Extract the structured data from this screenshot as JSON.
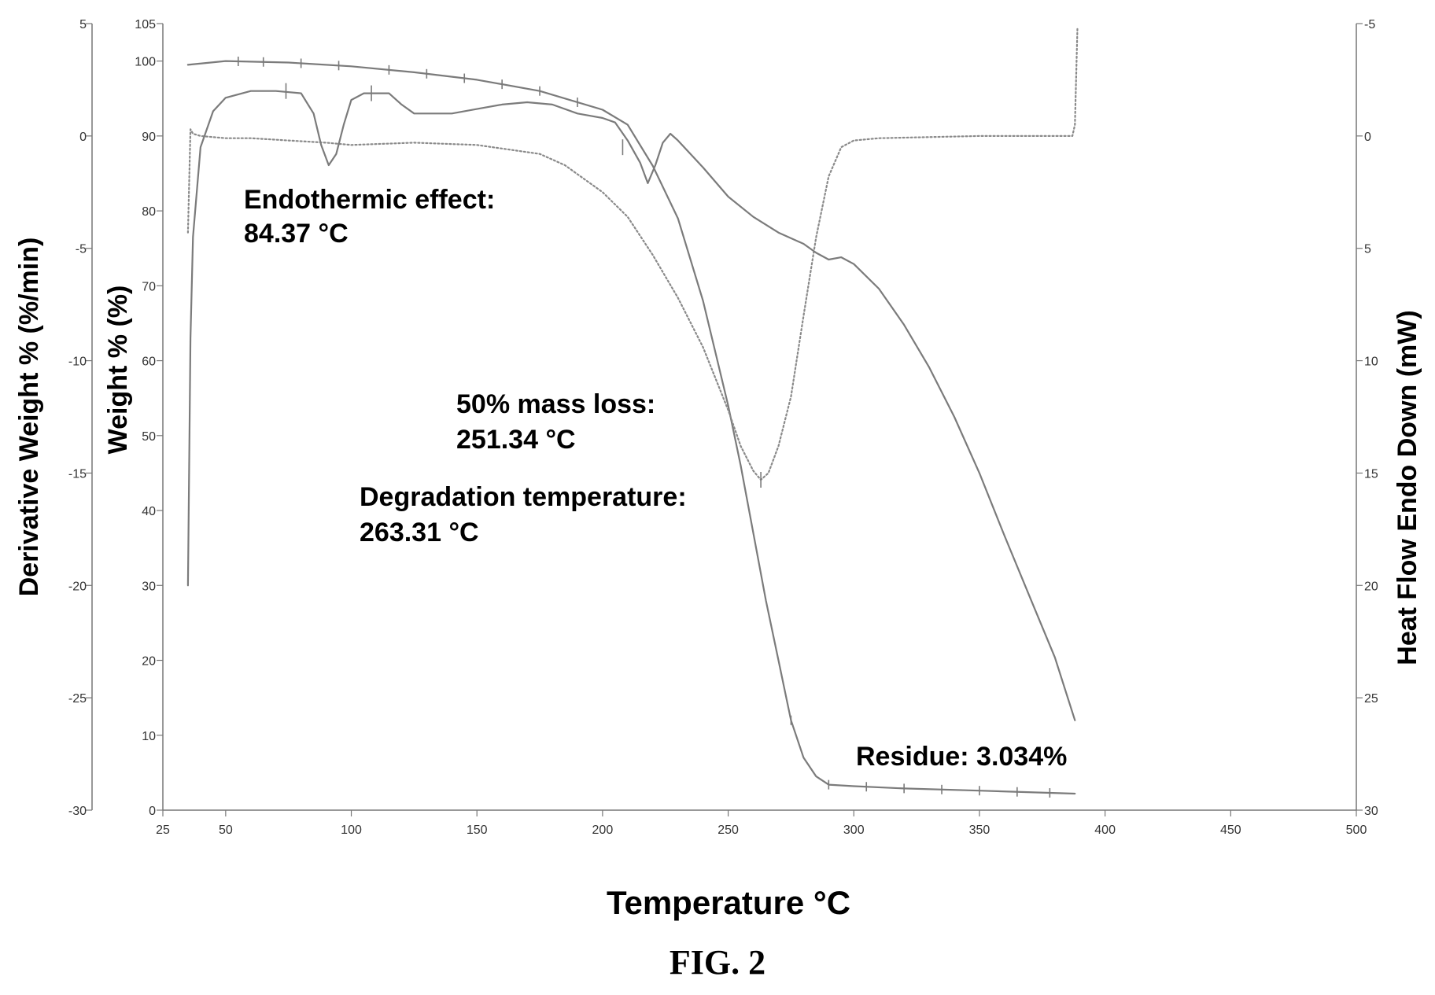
{
  "chart_data": {
    "type": "line",
    "caption": "FIG. 2",
    "xlabel": "Temperature °C",
    "xlim": [
      25,
      500
    ],
    "x_ticks": [
      25,
      50,
      100,
      150,
      200,
      250,
      300,
      350,
      400,
      450,
      500
    ],
    "axes": {
      "derivative": {
        "label": "Derivative Weight % (%/min)",
        "side": "left-outer",
        "ylim": [
          -30,
          5
        ],
        "ticks": [
          5,
          0,
          -5,
          -10,
          -15,
          -20,
          -25,
          -30
        ]
      },
      "weight": {
        "label": "Weight % (%)",
        "side": "left-inner",
        "ylim": [
          0,
          105
        ],
        "ticks": [
          105,
          100,
          90,
          80,
          70,
          60,
          50,
          40,
          30,
          20,
          10,
          0
        ]
      },
      "heatflow": {
        "label": "Heat Flow Endo Down (mW)",
        "side": "right",
        "ylim": [
          -5,
          30
        ],
        "inverted": true,
        "ticks": [
          -5,
          0,
          5,
          10,
          15,
          20,
          25,
          30
        ]
      }
    },
    "grid": false,
    "series": [
      {
        "id": "weight",
        "axis": "weight",
        "color": "#7b7b7b",
        "style": "solid",
        "x": [
          35,
          50,
          75,
          100,
          125,
          150,
          175,
          200,
          210,
          220,
          230,
          240,
          245,
          250,
          255,
          260,
          265,
          270,
          275,
          280,
          285,
          290,
          300,
          320,
          350,
          388
        ],
        "y": [
          99.5,
          100,
          99.8,
          99.3,
          98.5,
          97.5,
          96,
          93.5,
          91.5,
          86,
          79,
          68,
          61,
          54,
          46,
          37,
          28,
          20,
          12,
          7,
          4.5,
          3.4,
          3.2,
          2.9,
          2.6,
          2.2
        ]
      },
      {
        "id": "derivative_weight",
        "axis": "derivative",
        "color": "#8a8a8a",
        "style": "dotted",
        "x": [
          35,
          36,
          37,
          40,
          50,
          60,
          75,
          90,
          100,
          125,
          150,
          175,
          185,
          200,
          210,
          220,
          230,
          240,
          250,
          255,
          260,
          263,
          266,
          270,
          275,
          280,
          285,
          290,
          295,
          300,
          310,
          350,
          385,
          387,
          388,
          389
        ],
        "y": [
          -4.3,
          0.3,
          0.1,
          0.0,
          -0.1,
          -0.1,
          -0.2,
          -0.3,
          -0.4,
          -0.3,
          -0.4,
          -0.8,
          -1.3,
          -2.5,
          -3.6,
          -5.3,
          -7.2,
          -9.4,
          -12.2,
          -13.8,
          -14.9,
          -15.3,
          -15.0,
          -13.8,
          -11.6,
          -8.0,
          -4.5,
          -1.8,
          -0.5,
          -0.2,
          -0.1,
          0.0,
          0.0,
          0.0,
          0.5,
          4.8
        ]
      },
      {
        "id": "heat_flow",
        "axis": "heatflow",
        "color": "#7b7b7b",
        "style": "solid",
        "x": [
          35,
          36,
          37,
          40,
          45,
          50,
          60,
          70,
          80,
          85,
          88,
          91,
          94,
          97,
          100,
          105,
          110,
          115,
          120,
          125,
          130,
          140,
          150,
          160,
          170,
          180,
          190,
          200,
          205,
          210,
          215,
          218,
          221,
          224,
          227,
          230,
          240,
          250,
          260,
          270,
          280,
          285,
          290,
          295,
          300,
          310,
          320,
          330,
          340,
          350,
          360,
          370,
          380,
          388
        ],
        "y": [
          20,
          9,
          4.5,
          0.5,
          -1.1,
          -1.7,
          -2.0,
          -2.0,
          -1.9,
          -1.0,
          0.4,
          1.3,
          0.8,
          -0.5,
          -1.6,
          -1.9,
          -1.9,
          -1.9,
          -1.4,
          -1.0,
          -1.0,
          -1.0,
          -1.2,
          -1.4,
          -1.5,
          -1.4,
          -1.0,
          -0.8,
          -0.6,
          0.2,
          1.2,
          2.1,
          1.3,
          0.3,
          -0.1,
          0.2,
          1.4,
          2.7,
          3.6,
          4.3,
          4.8,
          5.2,
          5.5,
          5.4,
          5.7,
          6.8,
          8.4,
          10.3,
          12.5,
          15.0,
          17.8,
          20.5,
          23.2,
          26.0
        ]
      }
    ],
    "annotations": [
      {
        "lines": [
          "Endothermic effect:",
          "84.37 °C"
        ]
      },
      {
        "lines": [
          "50% mass loss:",
          "251.34 °C"
        ]
      },
      {
        "lines": [
          "Degradation temperature:",
          "263.31 °C"
        ]
      },
      {
        "lines": [
          "Residue:  3.034%"
        ]
      }
    ]
  }
}
